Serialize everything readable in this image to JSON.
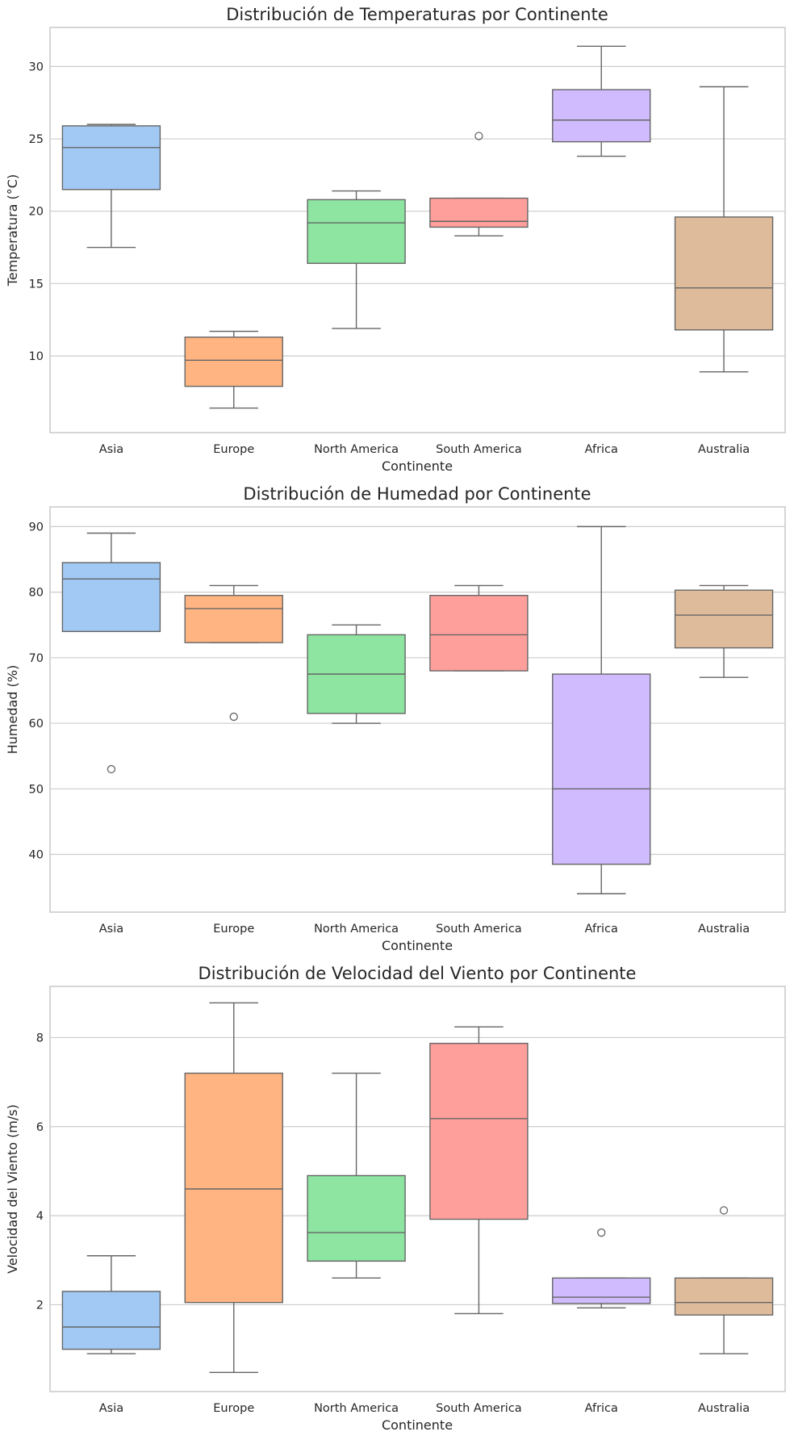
{
  "chart_data": [
    {
      "type": "box",
      "title": "Distribución de Temperaturas por Continente",
      "xlabel": "Continente",
      "ylabel": "Temperatura (°C)",
      "ylim": [
        4.7,
        32.7
      ],
      "yticks": [
        10,
        15,
        20,
        25,
        30
      ],
      "categories": [
        "Asia",
        "Europe",
        "North America",
        "South America",
        "Africa",
        "Australia"
      ],
      "colors": [
        "#a1c9f4",
        "#ffb482",
        "#8de5a1",
        "#ff9f9b",
        "#d0bbff",
        "#debb9b"
      ],
      "grid": "horizontal",
      "boxes": [
        {
          "whislo": 17.5,
          "q1": 21.5,
          "med": 24.4,
          "q3": 25.9,
          "whishi": 26.0,
          "fliers": []
        },
        {
          "whislo": 6.4,
          "q1": 7.9,
          "med": 9.7,
          "q3": 11.3,
          "whishi": 11.7,
          "fliers": []
        },
        {
          "whislo": 11.9,
          "q1": 16.4,
          "med": 19.2,
          "q3": 20.8,
          "whishi": 21.4,
          "fliers": []
        },
        {
          "whislo": 18.3,
          "q1": 18.9,
          "med": 19.3,
          "q3": 20.9,
          "whishi": 20.9,
          "fliers": [
            25.2
          ]
        },
        {
          "whislo": 23.8,
          "q1": 24.8,
          "med": 26.3,
          "q3": 28.4,
          "whishi": 31.4,
          "fliers": []
        },
        {
          "whislo": 8.9,
          "q1": 11.8,
          "med": 14.7,
          "q3": 19.6,
          "whishi": 28.6,
          "fliers": []
        }
      ]
    },
    {
      "type": "box",
      "title": "Distribución de Humedad por Continente",
      "xlabel": "Continente",
      "ylabel": "Humedad (%)",
      "ylim": [
        31.2,
        93.0
      ],
      "yticks": [
        40,
        50,
        60,
        70,
        80,
        90
      ],
      "categories": [
        "Asia",
        "Europe",
        "North America",
        "South America",
        "Africa",
        "Australia"
      ],
      "colors": [
        "#a1c9f4",
        "#ffb482",
        "#8de5a1",
        "#ff9f9b",
        "#d0bbff",
        "#debb9b"
      ],
      "grid": "horizontal",
      "boxes": [
        {
          "whislo": 74.0,
          "q1": 74.0,
          "med": 82.0,
          "q3": 84.5,
          "whishi": 89.0,
          "fliers": [
            53.0
          ]
        },
        {
          "whislo": 72.3,
          "q1": 72.3,
          "med": 77.5,
          "q3": 79.5,
          "whishi": 81.0,
          "fliers": [
            61.0
          ]
        },
        {
          "whislo": 60.0,
          "q1": 61.5,
          "med": 67.5,
          "q3": 73.5,
          "whishi": 75.0,
          "fliers": []
        },
        {
          "whislo": 68.0,
          "q1": 68.0,
          "med": 73.5,
          "q3": 79.5,
          "whishi": 81.0,
          "fliers": []
        },
        {
          "whislo": 34.0,
          "q1": 38.5,
          "med": 50.0,
          "q3": 67.5,
          "whishi": 90.0,
          "fliers": []
        },
        {
          "whislo": 67.0,
          "q1": 71.5,
          "med": 76.5,
          "q3": 80.3,
          "whishi": 81.0,
          "fliers": []
        }
      ]
    },
    {
      "type": "box",
      "title": "Distribución de Velocidad del Viento por Continente",
      "xlabel": "Continente",
      "ylabel": "Velocidad del Viento (m/s)",
      "ylim": [
        0.05,
        9.15
      ],
      "yticks": [
        2,
        4,
        6,
        8
      ],
      "categories": [
        "Asia",
        "Europe",
        "North America",
        "South America",
        "Africa",
        "Australia"
      ],
      "colors": [
        "#a1c9f4",
        "#ffb482",
        "#8de5a1",
        "#ff9f9b",
        "#d0bbff",
        "#debb9b"
      ],
      "grid": "horizontal",
      "boxes": [
        {
          "whislo": 0.9,
          "q1": 1.0,
          "med": 1.5,
          "q3": 2.3,
          "whishi": 3.1,
          "fliers": []
        },
        {
          "whislo": 0.48,
          "q1": 2.05,
          "med": 4.6,
          "q3": 7.2,
          "whishi": 8.78,
          "fliers": []
        },
        {
          "whislo": 2.6,
          "q1": 2.98,
          "med": 3.62,
          "q3": 4.9,
          "whishi": 7.2,
          "fliers": []
        },
        {
          "whislo": 1.8,
          "q1": 3.92,
          "med": 6.18,
          "q3": 7.87,
          "whishi": 8.24,
          "fliers": []
        },
        {
          "whislo": 1.93,
          "q1": 2.03,
          "med": 2.17,
          "q3": 2.6,
          "whishi": 2.6,
          "fliers": [
            3.62
          ]
        },
        {
          "whislo": 0.9,
          "q1": 1.77,
          "med": 2.05,
          "q3": 2.6,
          "whishi": 2.6,
          "fliers": [
            4.12
          ]
        }
      ]
    }
  ]
}
